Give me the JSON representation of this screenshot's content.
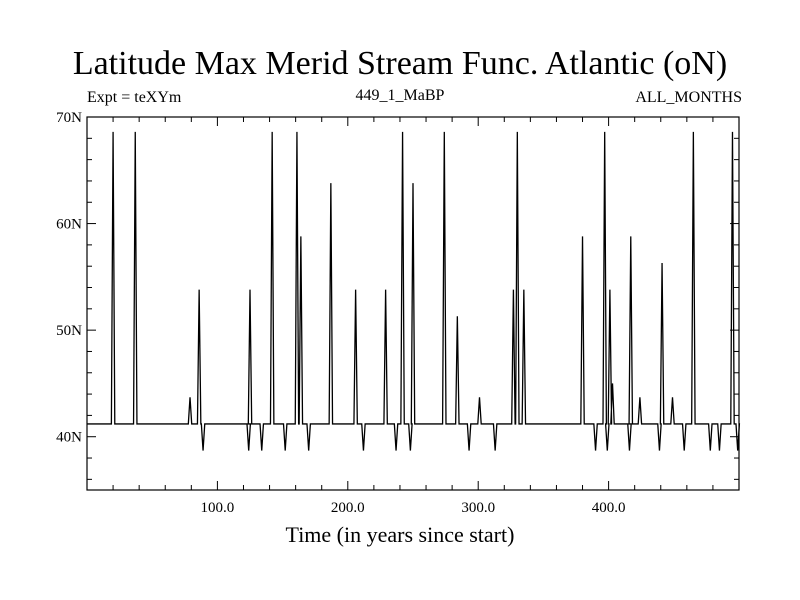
{
  "chart_data": {
    "type": "line",
    "title": "Latitude Max Merid Stream Func. Atlantic (oN)",
    "subtitle_left": "Expt = teXYm",
    "subtitle_center": "449_1_MaBP",
    "subtitle_right": "ALL_MONTHS",
    "xlabel": "Time (in years since start)",
    "ylabel": "",
    "xlim": [
      0,
      500
    ],
    "ylim": [
      35,
      70
    ],
    "x_ticks": [
      100,
      200,
      300,
      400
    ],
    "x_tick_labels": [
      "100.0",
      "200.0",
      "300.0",
      "400.0"
    ],
    "y_ticks": [
      40,
      50,
      60,
      70
    ],
    "y_tick_labels": [
      "40N",
      "50N",
      "60N",
      "70N"
    ],
    "grid": false,
    "legend": "none",
    "line_color": "#000000",
    "baseline": 41.2,
    "events": [
      {
        "x": 20,
        "y": 68.6
      },
      {
        "x": 37,
        "y": 68.6
      },
      {
        "x": 79,
        "y": 43.7
      },
      {
        "x": 86,
        "y": 53.8
      },
      {
        "x": 89,
        "y": 38.7
      },
      {
        "x": 124,
        "y": 38.7
      },
      {
        "x": 125,
        "y": 53.8
      },
      {
        "x": 134,
        "y": 38.7
      },
      {
        "x": 142,
        "y": 68.6
      },
      {
        "x": 152,
        "y": 38.7
      },
      {
        "x": 161,
        "y": 68.6
      },
      {
        "x": 164,
        "y": 58.8
      },
      {
        "x": 170,
        "y": 38.7
      },
      {
        "x": 187,
        "y": 63.8
      },
      {
        "x": 206,
        "y": 53.8
      },
      {
        "x": 212,
        "y": 38.7
      },
      {
        "x": 229,
        "y": 53.8
      },
      {
        "x": 237,
        "y": 38.7
      },
      {
        "x": 242,
        "y": 68.6
      },
      {
        "x": 248,
        "y": 38.7
      },
      {
        "x": 250,
        "y": 63.8
      },
      {
        "x": 274,
        "y": 68.6
      },
      {
        "x": 284,
        "y": 51.3
      },
      {
        "x": 293,
        "y": 38.7
      },
      {
        "x": 301,
        "y": 43.7
      },
      {
        "x": 313,
        "y": 38.7
      },
      {
        "x": 327,
        "y": 53.8
      },
      {
        "x": 330,
        "y": 68.6
      },
      {
        "x": 335,
        "y": 53.8
      },
      {
        "x": 380,
        "y": 58.8
      },
      {
        "x": 390,
        "y": 38.7
      },
      {
        "x": 397,
        "y": 68.6
      },
      {
        "x": 399,
        "y": 38.7
      },
      {
        "x": 401,
        "y": 53.8
      },
      {
        "x": 403,
        "y": 45.0
      },
      {
        "x": 416,
        "y": 38.7
      },
      {
        "x": 417,
        "y": 58.8
      },
      {
        "x": 424,
        "y": 43.7
      },
      {
        "x": 439,
        "y": 38.7
      },
      {
        "x": 441,
        "y": 56.3
      },
      {
        "x": 449,
        "y": 43.7
      },
      {
        "x": 458,
        "y": 38.7
      },
      {
        "x": 465,
        "y": 68.6
      },
      {
        "x": 478,
        "y": 38.7
      },
      {
        "x": 485,
        "y": 38.7
      },
      {
        "x": 495,
        "y": 68.6
      },
      {
        "x": 499,
        "y": 38.7
      }
    ]
  }
}
